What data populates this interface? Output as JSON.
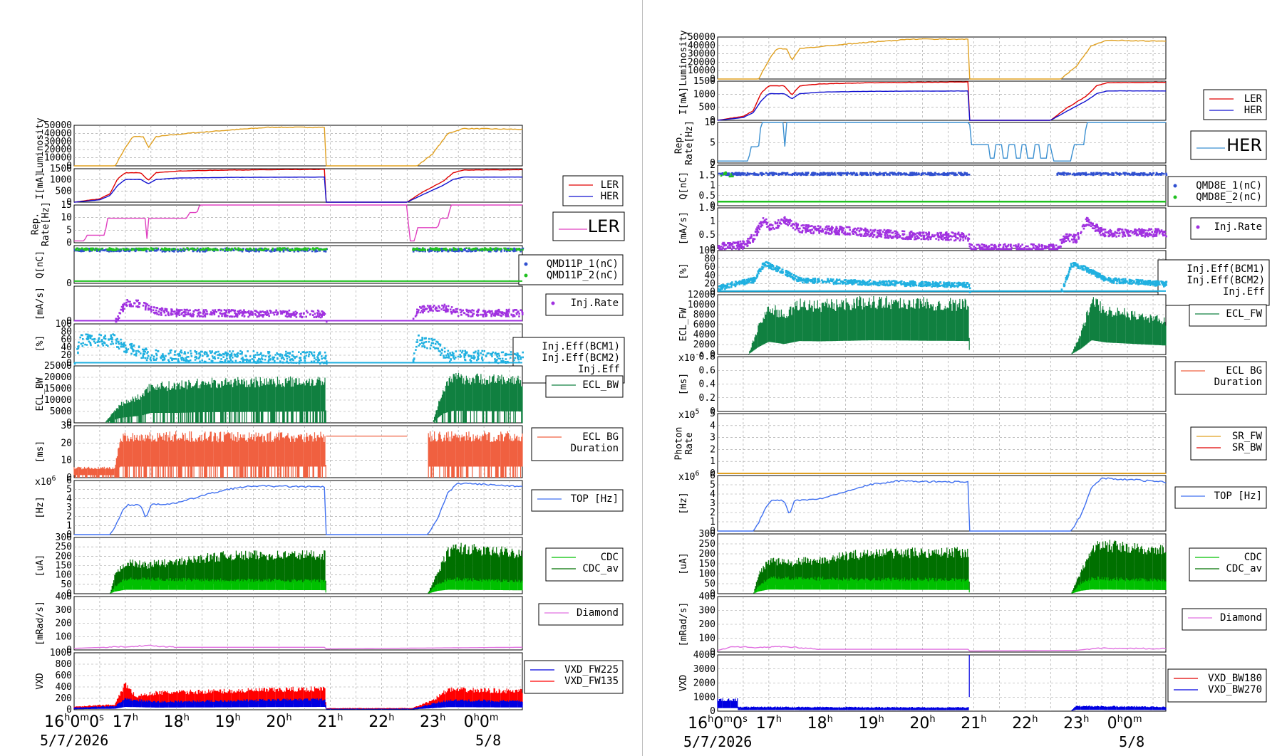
{
  "time_axis": {
    "hour_labels": [
      "16",
      "17",
      "18",
      "19",
      "20",
      "21",
      "22",
      "23",
      "0"
    ],
    "dates": [
      "5/7/2026",
      "5/8"
    ],
    "range_hours": [
      16.0,
      24.75
    ]
  },
  "colors": {
    "grid": "#999999",
    "ler": "#e00000",
    "her": "#1010d0",
    "lum": "#e0a020",
    "rep_ler": "#e040c0",
    "rep_her": "#3a8fd0",
    "qblue": "#3050d0",
    "qgreen": "#20c020",
    "inj": "#a030e0",
    "eff": "#20b0e0",
    "ecl": "#108040",
    "ecldur": "#f06040",
    "top": "#4070f0",
    "cdc_bright": "#00c000",
    "cdc_dark": "#007000",
    "diamond": "#e070e0",
    "vxd_blue": "#0000e0",
    "vxd_red": "#ff0000",
    "sr_fw": "#e0a020"
  },
  "left": {
    "panels": [
      {
        "ylabel": "Luminosity",
        "yticks": [
          "50000",
          "40000",
          "30000",
          "20000",
          "10000",
          "0"
        ],
        "legend": []
      },
      {
        "ylabel": "I[mA]",
        "yticks": [
          "1500",
          "1000",
          "500",
          "0"
        ],
        "legend": [
          "LER",
          "HER"
        ]
      },
      {
        "ylabel": "Rep. Rate[Hz]",
        "yticks": [
          "15",
          "10",
          "5",
          "0"
        ],
        "legend": [
          "LER"
        ]
      },
      {
        "ylabel": "Q[nC]",
        "yticks": [
          "0"
        ],
        "legend": [
          "QMD11P_1(nC)",
          "QMD11P_2(nC)"
        ]
      },
      {
        "ylabel": "[mA/s]",
        "yticks": [
          "0"
        ],
        "legend": [
          "Inj.Rate"
        ]
      },
      {
        "ylabel": "[%]",
        "yticks": [
          "100",
          "80",
          "60",
          "40",
          "20",
          "0"
        ],
        "legend": [
          "Inj.Eff(BCM1)",
          "Inj.Eff(BCM2)",
          "Inj.Eff"
        ]
      },
      {
        "ylabel": "ECL_BW",
        "yticks": [
          "25000",
          "20000",
          "15000",
          "10000",
          "5000",
          "0"
        ],
        "legend": [
          "ECL_BW"
        ]
      },
      {
        "ylabel": "[ms]",
        "yticks": [
          "30",
          "20",
          "10",
          "0"
        ],
        "legend": [
          "ECL BG",
          "Duration"
        ]
      },
      {
        "ylabel": "[Hz]",
        "yticks": [
          "6",
          "5",
          "4",
          "3",
          "2",
          "1",
          "0"
        ],
        "legend": [
          "TOP [Hz]"
        ],
        "exp": "x10",
        "exp_pow": "6"
      },
      {
        "ylabel": "[uA]",
        "yticks": [
          "300",
          "250",
          "200",
          "150",
          "100",
          "50",
          "0"
        ],
        "legend": [
          "CDC",
          "CDC_av"
        ]
      },
      {
        "ylabel": "[mRad/s]",
        "yticks": [
          "400",
          "300",
          "200",
          "100",
          "0"
        ],
        "legend": [
          "Diamond"
        ]
      },
      {
        "ylabel": "VXD",
        "yticks": [
          "1000",
          "800",
          "600",
          "400",
          "200",
          "0"
        ],
        "legend": [
          "VXD_FW225",
          "VXD_FW135"
        ]
      }
    ]
  },
  "right": {
    "panels": [
      {
        "ylabel": "Luminosity",
        "yticks": [
          "50000",
          "40000",
          "30000",
          "20000",
          "10000",
          "0"
        ],
        "legend": []
      },
      {
        "ylabel": "I[mA]",
        "yticks": [
          "1500",
          "1000",
          "500",
          "0"
        ],
        "legend": [
          "LER",
          "HER"
        ]
      },
      {
        "ylabel": "Rep. Rate[Hz]",
        "yticks": [
          "10",
          "5",
          "0"
        ],
        "legend": [
          "HER"
        ]
      },
      {
        "ylabel": "Q[nC]",
        "yticks": [
          "2",
          "1.5",
          "1",
          "0.5",
          "0"
        ],
        "legend": [
          "QMD8E_1(nC)",
          "QMD8E_2(nC)"
        ]
      },
      {
        "ylabel": "[mA/s]",
        "yticks": [
          "1.5",
          "1",
          "0.5",
          "0"
        ],
        "legend": [
          "Inj.Rate"
        ]
      },
      {
        "ylabel": "[%]",
        "yticks": [
          "100",
          "80",
          "60",
          "40",
          "20",
          "0"
        ],
        "legend": [
          "Inj.Eff(BCM1)",
          "Inj.Eff(BCM2)",
          "Inj.Eff"
        ]
      },
      {
        "ylabel": "ECL_FW",
        "yticks": [
          "12000",
          "10000",
          "8000",
          "6000",
          "4000",
          "2000",
          "0"
        ],
        "legend": [
          "ECL_FW"
        ]
      },
      {
        "ylabel": "[ms]",
        "yticks": [
          "0.8",
          "0.6",
          "0.4",
          "0.2",
          "0"
        ],
        "legend": [
          "ECL BG",
          "Duration"
        ],
        "exp": "x10",
        "exp_pow": "-6"
      },
      {
        "ylabel": "Photon Rate",
        "yticks": [
          "5",
          "4",
          "3",
          "2",
          "1",
          "0"
        ],
        "legend": [
          "SR_FW",
          "SR_BW"
        ],
        "exp": "x10",
        "exp_pow": "5"
      },
      {
        "ylabel": "[Hz]",
        "yticks": [
          "6",
          "5",
          "4",
          "3",
          "2",
          "1",
          "0"
        ],
        "legend": [
          "TOP [Hz]"
        ],
        "exp": "x10",
        "exp_pow": "6"
      },
      {
        "ylabel": "[uA]",
        "yticks": [
          "300",
          "250",
          "200",
          "150",
          "100",
          "50",
          "0"
        ],
        "legend": [
          "CDC",
          "CDC_av"
        ]
      },
      {
        "ylabel": "[mRad/s]",
        "yticks": [
          "400",
          "300",
          "200",
          "100",
          "0"
        ],
        "legend": [
          "Diamond"
        ]
      },
      {
        "ylabel": "VXD",
        "yticks": [
          "4000",
          "3000",
          "2000",
          "1000",
          "0"
        ],
        "legend": [
          "VXD_BW180",
          "VXD_BW270"
        ]
      }
    ]
  },
  "chart_data": [
    {
      "type": "line",
      "x_unit": "hour of day (5/7/2026 16h to 5/8 00h45)",
      "series": [
        {
          "name": "LER",
          "x": [
            16.0,
            16.5,
            16.7,
            16.85,
            17.0,
            17.3,
            17.45,
            17.6,
            18.0,
            19.0,
            20.0,
            20.9,
            20.92,
            22.5,
            22.8,
            23.2,
            23.4,
            23.6,
            24.75
          ],
          "values": [
            0,
            150,
            400,
            1100,
            1400,
            1400,
            1050,
            1400,
            1500,
            1550,
            1580,
            1590,
            0,
            0,
            500,
            1000,
            1400,
            1550,
            1560
          ]
        },
        {
          "name": "HER",
          "x": [
            16.0,
            16.5,
            16.7,
            16.85,
            17.0,
            17.3,
            17.45,
            17.6,
            18.0,
            19.0,
            20.0,
            20.9,
            20.92,
            22.5,
            22.8,
            23.2,
            23.4,
            23.6,
            24.75
          ],
          "values": [
            0,
            100,
            300,
            800,
            1100,
            1100,
            900,
            1100,
            1150,
            1180,
            1200,
            1200,
            0,
            0,
            350,
            800,
            1100,
            1200,
            1200
          ]
        },
        {
          "name": "Inj.Rate",
          "values": []
        },
        {
          "name": "TOP [Hz]",
          "x": [
            16.7,
            16.9,
            17.0,
            17.3,
            17.4,
            17.5,
            18.0,
            18.5,
            19.0,
            19.5,
            20.0,
            20.9,
            20.92,
            22.9,
            23.1,
            23.3,
            23.5,
            24.0,
            24.75
          ],
          "values": [
            0.5,
            2.5,
            3.5,
            3.5,
            2,
            3.5,
            3.6,
            4.5,
            5.2,
            5.4,
            5.4,
            5.3,
            0,
            0,
            2,
            5,
            5.8,
            5.6,
            5.3
          ]
        },
        {
          "name": "VXD_FW225",
          "values": []
        },
        {
          "name": "VXD_FW135",
          "values": []
        }
      ]
    }
  ]
}
